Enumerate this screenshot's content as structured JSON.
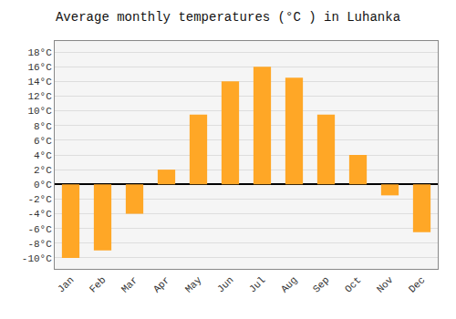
{
  "chart_data": {
    "type": "bar",
    "title": "Average monthly temperatures (°C ) in Luhanka",
    "categories": [
      "Jan",
      "Feb",
      "Mar",
      "Apr",
      "May",
      "Jun",
      "Jul",
      "Aug",
      "Sep",
      "Oct",
      "Nov",
      "Dec"
    ],
    "values": [
      -10,
      -9,
      -4,
      2,
      9.5,
      14,
      16,
      14.5,
      9.5,
      4,
      -1.5,
      -6.5
    ],
    "color": "#FFA726",
    "ylim": [
      -11.5,
      19.5
    ],
    "yticks": [
      {
        "value": -10,
        "label": "-10°C"
      },
      {
        "value": -8,
        "label": "-8°C"
      },
      {
        "value": -6,
        "label": "-6°C"
      },
      {
        "value": -4,
        "label": "-4°C"
      },
      {
        "value": -2,
        "label": "-2°C"
      },
      {
        "value": 0,
        "label": "0°C"
      },
      {
        "value": 2,
        "label": "2°C"
      },
      {
        "value": 4,
        "label": "4°C"
      },
      {
        "value": 6,
        "label": "6°C"
      },
      {
        "value": 8,
        "label": "8°C"
      },
      {
        "value": 10,
        "label": "10°C"
      },
      {
        "value": 12,
        "label": "12°C"
      },
      {
        "value": 14,
        "label": "14°C"
      },
      {
        "value": 16,
        "label": "16°C"
      },
      {
        "value": 18,
        "label": "18°C"
      }
    ],
    "grid": true
  }
}
